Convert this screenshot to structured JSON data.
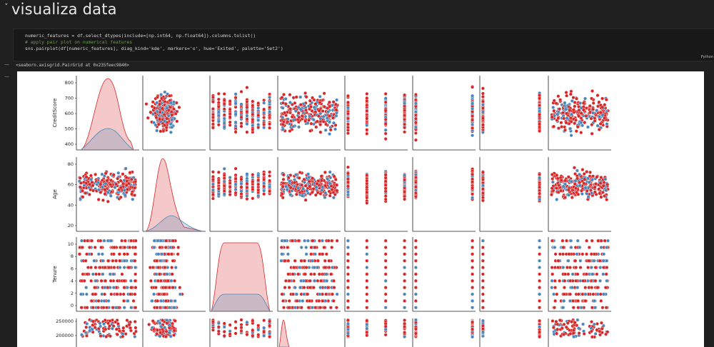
{
  "heading": {
    "chevron": "˅",
    "title": "visualiza data"
  },
  "code": {
    "line1": "numeric_features = df.select_dtypes(include=[np.int64, np.float64]).columns.tolist()",
    "line2": "# apply pair plot on numerical features",
    "line3": "sns.pairplot(df[numeric_features], diag_kind='kde', markers='o', hue='Exited', palette='Set2')",
    "language": "Python"
  },
  "output": {
    "marker": "—",
    "text": "<seaborn.axisgrid.PairGrid at 0x235feec9840>"
  },
  "plot": {
    "hue_colors": {
      "exited_0": "#4c86b8",
      "exited_1": "#d62728"
    },
    "row_labels": [
      "CreditScore",
      "Age",
      "Tenure",
      ""
    ],
    "row_ticks": [
      [
        "800",
        "700",
        "600",
        "500",
        "400"
      ],
      [
        "80",
        "60",
        "40",
        "20"
      ],
      [
        "10",
        "8",
        "6",
        "4",
        "2",
        "0"
      ],
      [
        "250000",
        "200000"
      ]
    ],
    "discrete_cols": [
      {
        "col": 2,
        "values": [
          0,
          1,
          2,
          3,
          4,
          5,
          6,
          7,
          8,
          9,
          10
        ]
      },
      {
        "col": 4,
        "values": [
          1,
          2,
          3,
          4
        ]
      },
      {
        "col": 5,
        "values": [
          0,
          1
        ]
      },
      {
        "col": 6,
        "values": [
          0,
          1
        ]
      }
    ]
  }
}
